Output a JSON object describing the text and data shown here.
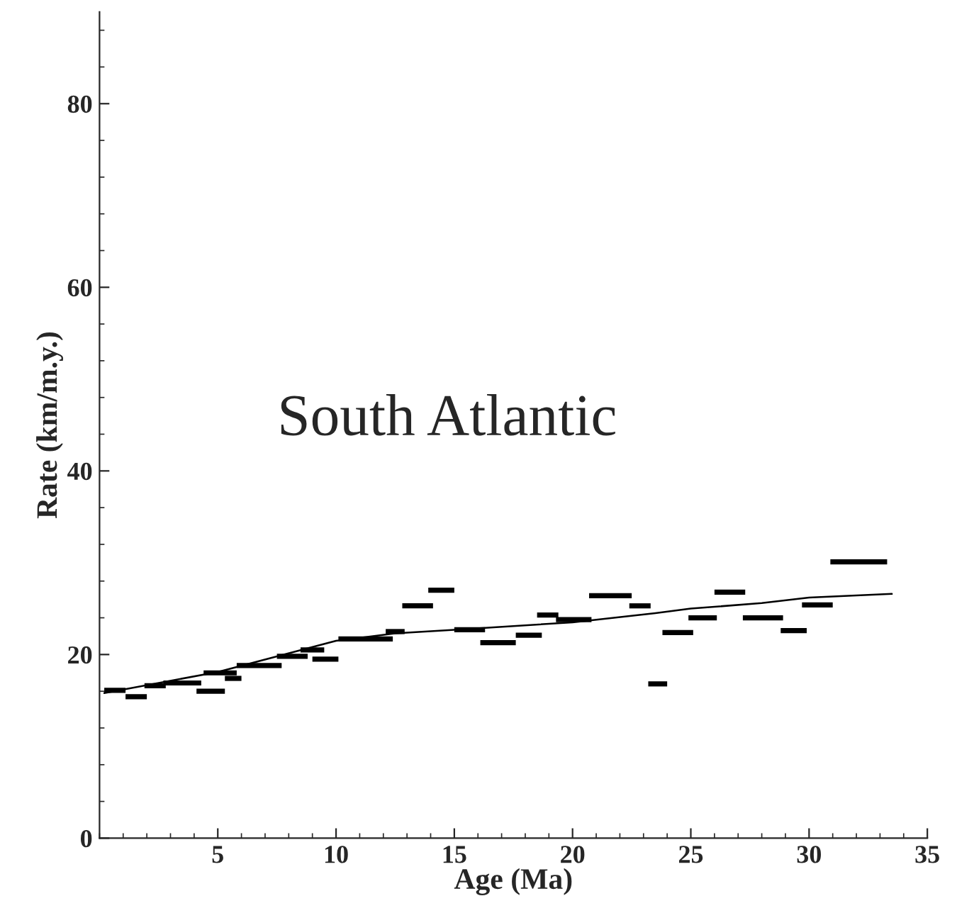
{
  "chart_data": {
    "type": "step",
    "xlabel": "Age (Ma)",
    "ylabel": "Rate (km/m.y.)",
    "annotations": [
      "South Atlantic"
    ],
    "xlim": [
      0,
      35
    ],
    "ylim": [
      0,
      90
    ],
    "xticks": [
      5,
      10,
      15,
      20,
      25,
      30,
      35
    ],
    "yticks": [
      0,
      20,
      40,
      60,
      80
    ],
    "grid": false,
    "legend": false,
    "marker": "none",
    "line_style": "solid",
    "series": [
      {
        "color": "#000000",
        "x": [
          0.2,
          1.1
        ],
        "values": [
          16.1,
          16.1
        ]
      },
      {
        "color": "#000000",
        "x": [
          1.1,
          2.0
        ],
        "values": [
          15.4,
          15.4
        ]
      },
      {
        "color": "#000000",
        "x": [
          1.9,
          2.8
        ],
        "values": [
          16.6,
          16.6
        ]
      },
      {
        "color": "#000000",
        "x": [
          2.7,
          4.3
        ],
        "values": [
          16.9,
          16.9
        ]
      },
      {
        "color": "#000000",
        "x": [
          4.1,
          5.3
        ],
        "values": [
          16.0,
          16.0
        ]
      },
      {
        "color": "#000000",
        "x": [
          4.4,
          5.8
        ],
        "values": [
          18.0,
          18.0
        ]
      },
      {
        "color": "#000000",
        "x": [
          5.3,
          6.0
        ],
        "values": [
          17.4,
          17.4
        ]
      },
      {
        "color": "#000000",
        "x": [
          5.8,
          7.7
        ],
        "values": [
          18.8,
          18.8
        ]
      },
      {
        "color": "#000000",
        "x": [
          7.5,
          8.8
        ],
        "values": [
          19.8,
          19.8
        ]
      },
      {
        "color": "#000000",
        "x": [
          8.5,
          9.5
        ],
        "values": [
          20.5,
          20.5
        ]
      },
      {
        "color": "#000000",
        "x": [
          9.0,
          10.1
        ],
        "values": [
          19.5,
          19.5
        ]
      },
      {
        "color": "#000000",
        "x": [
          10.1,
          12.4
        ],
        "values": [
          21.7,
          21.7
        ]
      },
      {
        "color": "#000000",
        "x": [
          12.1,
          12.9
        ],
        "values": [
          22.5,
          22.5
        ]
      },
      {
        "color": "#000000",
        "x": [
          12.8,
          14.1
        ],
        "values": [
          25.3,
          25.3
        ]
      },
      {
        "color": "#000000",
        "x": [
          13.9,
          15.0
        ],
        "values": [
          27.0,
          27.0
        ]
      },
      {
        "color": "#000000",
        "x": [
          15.0,
          16.3
        ],
        "values": [
          22.7,
          22.7
        ]
      },
      {
        "color": "#000000",
        "x": [
          16.1,
          17.6
        ],
        "values": [
          21.3,
          21.3
        ]
      },
      {
        "color": "#000000",
        "x": [
          17.6,
          18.7
        ],
        "values": [
          22.1,
          22.1
        ]
      },
      {
        "color": "#000000",
        "x": [
          18.5,
          19.4
        ],
        "values": [
          24.3,
          24.3
        ]
      },
      {
        "color": "#000000",
        "x": [
          19.3,
          20.8
        ],
        "values": [
          23.8,
          23.8
        ]
      },
      {
        "color": "#000000",
        "x": [
          20.7,
          22.5
        ],
        "values": [
          26.4,
          26.4
        ]
      },
      {
        "color": "#000000",
        "x": [
          22.4,
          23.3
        ],
        "values": [
          25.3,
          25.3
        ]
      },
      {
        "color": "#000000",
        "x": [
          23.2,
          24.0
        ],
        "values": [
          16.8,
          16.8
        ]
      },
      {
        "color": "#000000",
        "x": [
          23.8,
          25.1
        ],
        "values": [
          22.4,
          22.4
        ]
      },
      {
        "color": "#000000",
        "x": [
          24.9,
          26.1
        ],
        "values": [
          24.0,
          24.0
        ]
      },
      {
        "color": "#000000",
        "x": [
          26.0,
          27.3
        ],
        "values": [
          26.8,
          26.8
        ]
      },
      {
        "color": "#000000",
        "x": [
          27.2,
          28.9
        ],
        "values": [
          24.0,
          24.0
        ]
      },
      {
        "color": "#000000",
        "x": [
          28.8,
          29.9
        ],
        "values": [
          22.6,
          22.6
        ]
      },
      {
        "color": "#000000",
        "x": [
          29.7,
          31.0
        ],
        "values": [
          25.4,
          25.4
        ]
      },
      {
        "color": "#000000",
        "x": [
          30.9,
          33.3
        ],
        "values": [
          30.1,
          30.1
        ]
      },
      {
        "color": "#000000",
        "type": "line",
        "x": [
          0.2,
          5,
          10,
          12.5,
          15,
          20,
          23.5,
          25,
          28,
          30,
          33.5
        ],
        "values": [
          15.8,
          18.1,
          21.5,
          22.3,
          22.7,
          23.5,
          24.5,
          25.0,
          25.6,
          26.2,
          26.6
        ]
      }
    ]
  }
}
